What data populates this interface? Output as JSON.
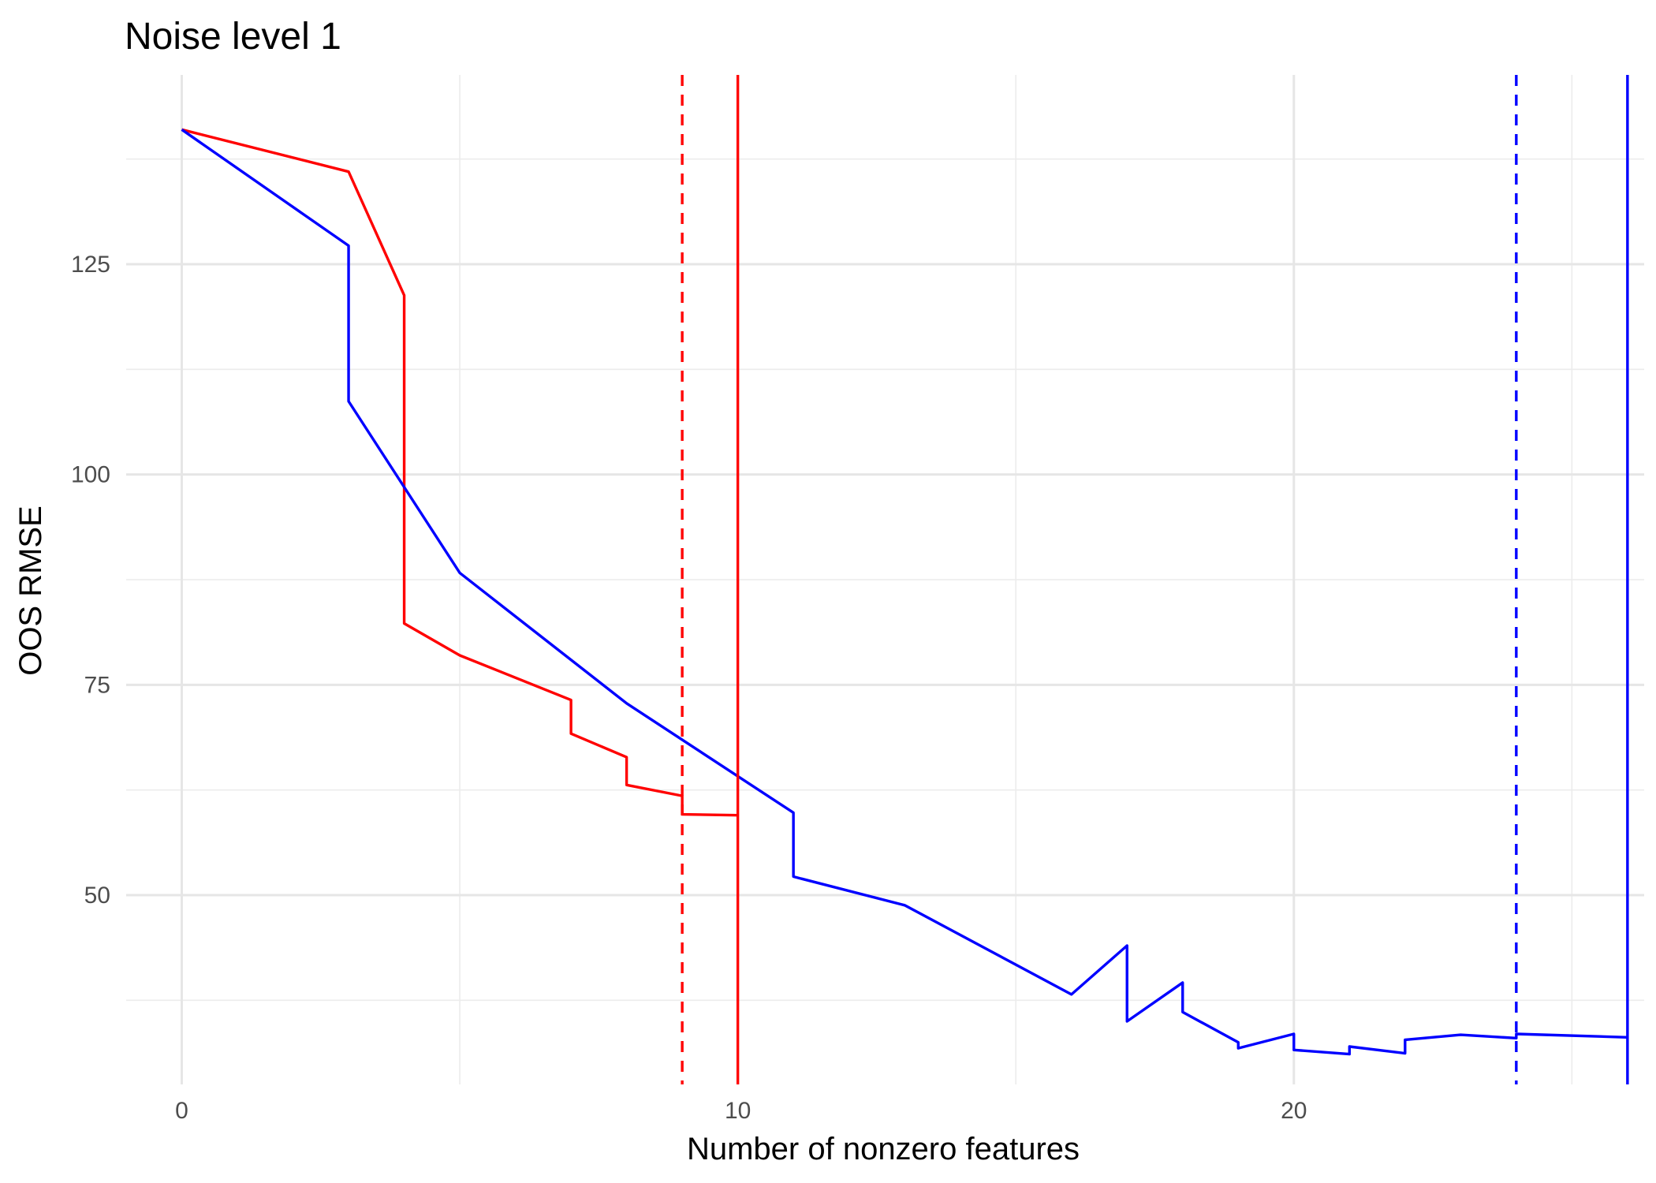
{
  "chart_data": {
    "type": "line",
    "title": "Noise level 1",
    "xlabel": "Number of nonzero features",
    "ylabel": "OOS RMSE",
    "xlim": [
      -1,
      26.3
    ],
    "ylim": [
      27.5,
      147.5
    ],
    "x_ticks": [
      0,
      10,
      20
    ],
    "y_ticks": [
      50,
      75,
      100,
      125
    ],
    "x_tick_labels": [
      "0",
      "10",
      "20"
    ],
    "y_tick_labels": [
      "50",
      "75",
      "100",
      "125"
    ],
    "grid": true,
    "legend": "none",
    "series": [
      {
        "color": "#ff0000",
        "points": [
          [
            0,
            141
          ],
          [
            3,
            136
          ],
          [
            4,
            121.3
          ],
          [
            4,
            82.3
          ],
          [
            5,
            78.5
          ],
          [
            7,
            73.2
          ],
          [
            7,
            69.2
          ],
          [
            8,
            66.4
          ],
          [
            8,
            63.1
          ],
          [
            9,
            61.8
          ],
          [
            9,
            59.6
          ],
          [
            10,
            59.5
          ]
        ]
      },
      {
        "color": "#0000ff",
        "points": [
          [
            0,
            141
          ],
          [
            3,
            127.2
          ],
          [
            3,
            108.7
          ],
          [
            5,
            88.3
          ],
          [
            8,
            72.8
          ],
          [
            11,
            59.8
          ],
          [
            11,
            52.2
          ],
          [
            13,
            48.8
          ],
          [
            16,
            38.2
          ],
          [
            17,
            44
          ],
          [
            17,
            35
          ],
          [
            18,
            39.6
          ],
          [
            18,
            36.1
          ],
          [
            19,
            32.5
          ],
          [
            19,
            31.8
          ],
          [
            20,
            33.5
          ],
          [
            20,
            31.6
          ],
          [
            21,
            31.1
          ],
          [
            21,
            32
          ],
          [
            22,
            31.2
          ],
          [
            22,
            32.8
          ],
          [
            23,
            33.4
          ],
          [
            24,
            33
          ],
          [
            24,
            33.5
          ],
          [
            26,
            33.1
          ]
        ]
      }
    ],
    "vlines": [
      {
        "x": 9,
        "color": "#ff0000",
        "style": "dashed"
      },
      {
        "x": 10,
        "color": "#ff0000",
        "style": "solid"
      },
      {
        "x": 24,
        "color": "#0000ff",
        "style": "dashed"
      },
      {
        "x": 26,
        "color": "#0000ff",
        "style": "solid"
      }
    ]
  }
}
